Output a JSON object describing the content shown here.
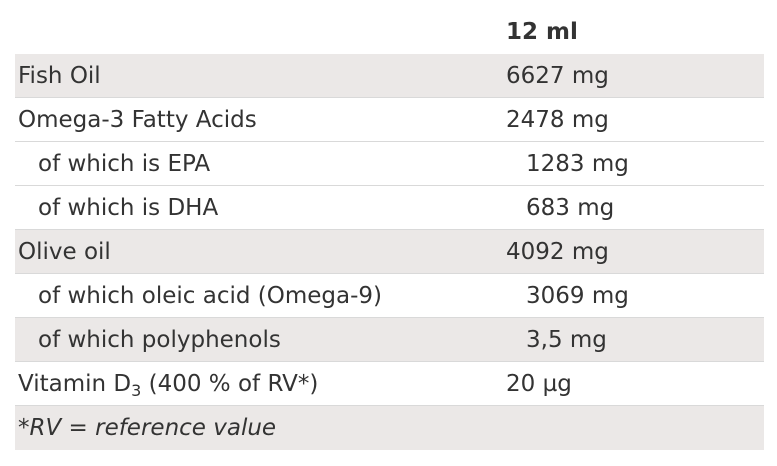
{
  "header": {
    "column_label": "",
    "column_value": "12 ml"
  },
  "rows": [
    {
      "label": "Fish Oil",
      "value": "6627 mg"
    },
    {
      "label": "Omega-3 Fatty Acids",
      "value": "2478 mg"
    },
    {
      "label": "of which is EPA",
      "value": "1283 mg"
    },
    {
      "label": "of which is DHA",
      "value": "683 mg"
    },
    {
      "label": "Olive oil",
      "value": "4092 mg"
    },
    {
      "label": "of which oleic acid (Omega-9)",
      "value": "3069 mg"
    },
    {
      "label": "of which polyphenols",
      "value": "3,5 mg"
    },
    {
      "label_prefix": "Vitamin D",
      "label_subscript": "3",
      "label_suffix": " (400 % of RV*)",
      "value": "20 µg"
    }
  ],
  "footnote": "*RV = reference value"
}
